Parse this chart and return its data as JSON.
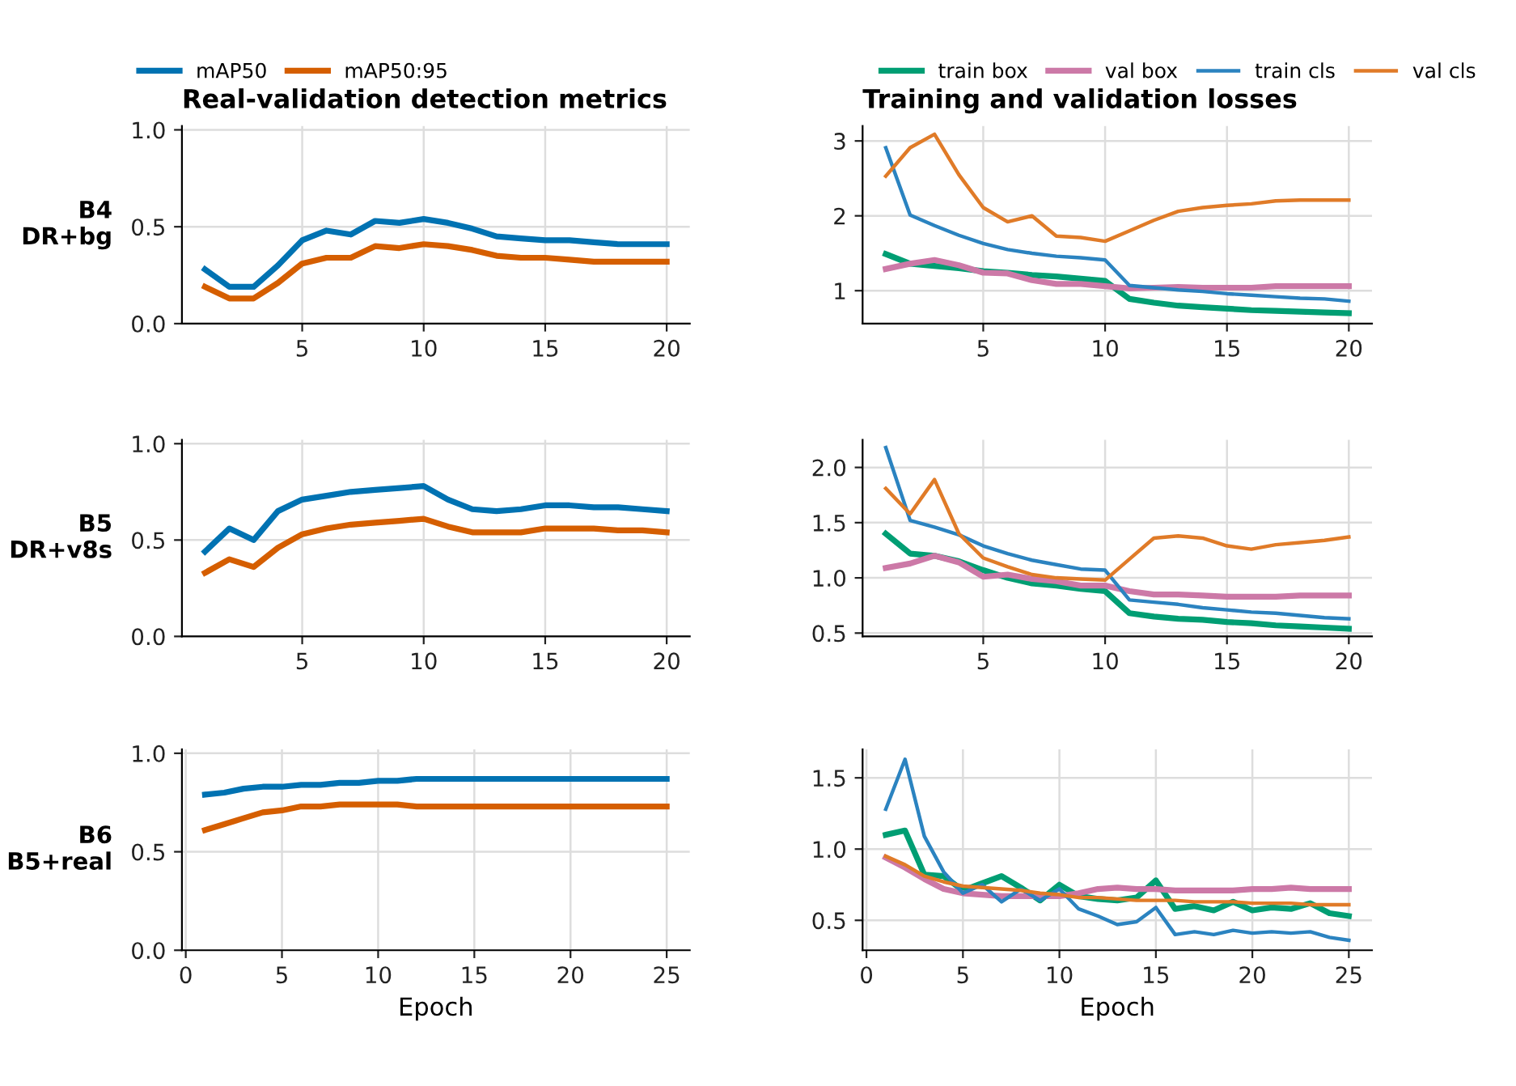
{
  "chart_data": [
    {
      "type": "line",
      "title": "Real-validation detection metrics",
      "ylabel": "B4\nDR+bg",
      "legend": "top left",
      "grid": true,
      "x": [
        1,
        2,
        3,
        4,
        5,
        6,
        7,
        8,
        9,
        10,
        11,
        12,
        13,
        14,
        15,
        16,
        17,
        18,
        19,
        20
      ],
      "xlim": [
        0.05,
        20.95
      ],
      "xticks": [
        5,
        10,
        15,
        20
      ],
      "ylim": [
        0,
        1.02
      ],
      "yticks": [
        {
          "value": 0,
          "label": "0.0"
        },
        0.5,
        {
          "value": 1,
          "label": "1.0"
        }
      ],
      "series": [
        {
          "name": "mAP50",
          "color": "#0072b2",
          "values": [
            0.28,
            0.19,
            0.19,
            0.3,
            0.43,
            0.48,
            0.46,
            0.53,
            0.52,
            0.54,
            0.52,
            0.49,
            0.45,
            0.44,
            0.43,
            0.43,
            0.42,
            0.41,
            0.41,
            0.41
          ]
        },
        {
          "name": "mAP50:95",
          "color": "#d55e00",
          "values": [
            0.19,
            0.13,
            0.13,
            0.21,
            0.31,
            0.34,
            0.34,
            0.4,
            0.39,
            0.41,
            0.4,
            0.38,
            0.35,
            0.34,
            0.34,
            0.33,
            0.32,
            0.32,
            0.32,
            0.32
          ]
        }
      ]
    },
    {
      "type": "line",
      "title": "Training and validation losses",
      "legend": "top right",
      "grid": true,
      "x": [
        1,
        2,
        3,
        4,
        5,
        6,
        7,
        8,
        9,
        10,
        11,
        12,
        13,
        14,
        15,
        16,
        17,
        18,
        19,
        20
      ],
      "xlim": [
        0.05,
        20.95
      ],
      "xticks": [
        5,
        10,
        15,
        20
      ],
      "ylim": [
        0.56,
        3.2
      ],
      "yticks": [
        1,
        2,
        3
      ],
      "series": [
        {
          "name": "train box",
          "color": "#009e73",
          "values": [
            1.49,
            1.36,
            1.33,
            1.3,
            1.26,
            1.24,
            1.21,
            1.19,
            1.16,
            1.13,
            0.89,
            0.84,
            0.8,
            0.78,
            0.76,
            0.74,
            0.73,
            0.72,
            0.71,
            0.7
          ]
        },
        {
          "name": "val box",
          "color": "#cc79a7",
          "values": [
            1.29,
            1.36,
            1.41,
            1.34,
            1.24,
            1.23,
            1.14,
            1.09,
            1.09,
            1.06,
            1.03,
            1.04,
            1.05,
            1.04,
            1.04,
            1.04,
            1.06,
            1.06,
            1.06,
            1.06
          ]
        },
        {
          "name": "train cls",
          "color": "#2b83c0",
          "values": [
            2.91,
            2.01,
            1.87,
            1.74,
            1.63,
            1.55,
            1.5,
            1.46,
            1.44,
            1.41,
            1.07,
            1.04,
            1.01,
            0.99,
            0.96,
            0.94,
            0.92,
            0.9,
            0.89,
            0.86
          ]
        },
        {
          "name": "val cls",
          "color": "#e07b28",
          "values": [
            2.53,
            2.91,
            3.09,
            2.55,
            2.11,
            1.92,
            2.0,
            1.73,
            1.71,
            1.66,
            1.8,
            1.94,
            2.06,
            2.11,
            2.14,
            2.16,
            2.2,
            2.21,
            2.21,
            2.21
          ]
        }
      ]
    },
    {
      "type": "line",
      "ylabel": "B5\nDR+v8s",
      "grid": true,
      "x": [
        1,
        2,
        3,
        4,
        5,
        6,
        7,
        8,
        9,
        10,
        11,
        12,
        13,
        14,
        15,
        16,
        17,
        18,
        19,
        20
      ],
      "xlim": [
        0.05,
        20.95
      ],
      "xticks": [
        5,
        10,
        15,
        20
      ],
      "ylim": [
        0,
        1.02
      ],
      "yticks": [
        {
          "value": 0,
          "label": "0.0"
        },
        0.5,
        {
          "value": 1,
          "label": "1.0"
        }
      ],
      "series": [
        {
          "color": "#0072b2",
          "values": [
            0.44,
            0.56,
            0.5,
            0.65,
            0.71,
            0.73,
            0.75,
            0.76,
            0.77,
            0.78,
            0.71,
            0.66,
            0.65,
            0.66,
            0.68,
            0.68,
            0.67,
            0.67,
            0.66,
            0.65
          ]
        },
        {
          "color": "#d55e00",
          "values": [
            0.33,
            0.4,
            0.36,
            0.46,
            0.53,
            0.56,
            0.58,
            0.59,
            0.6,
            0.61,
            0.57,
            0.54,
            0.54,
            0.54,
            0.56,
            0.56,
            0.56,
            0.55,
            0.55,
            0.54
          ]
        }
      ]
    },
    {
      "type": "line",
      "grid": true,
      "x": [
        1,
        2,
        3,
        4,
        5,
        6,
        7,
        8,
        9,
        10,
        11,
        12,
        13,
        14,
        15,
        16,
        17,
        18,
        19,
        20
      ],
      "xlim": [
        0.05,
        20.95
      ],
      "xticks": [
        5,
        10,
        15,
        20
      ],
      "ylim": [
        0.47,
        2.25
      ],
      "yticks": [
        0.5,
        {
          "value": 1,
          "label": "1.0"
        },
        1.5,
        {
          "value": 2,
          "label": "2.0"
        }
      ],
      "series": [
        {
          "color": "#009e73",
          "values": [
            1.4,
            1.22,
            1.2,
            1.15,
            1.07,
            1.0,
            0.95,
            0.93,
            0.9,
            0.88,
            0.68,
            0.65,
            0.63,
            0.62,
            0.6,
            0.59,
            0.57,
            0.56,
            0.55,
            0.54
          ]
        },
        {
          "color": "#cc79a7",
          "values": [
            1.09,
            1.13,
            1.2,
            1.14,
            1.01,
            1.03,
            0.99,
            0.97,
            0.93,
            0.93,
            0.88,
            0.85,
            0.85,
            0.84,
            0.83,
            0.83,
            0.83,
            0.84,
            0.84,
            0.84
          ]
        },
        {
          "color": "#2b83c0",
          "values": [
            2.18,
            1.52,
            1.46,
            1.39,
            1.29,
            1.22,
            1.16,
            1.12,
            1.08,
            1.07,
            0.8,
            0.78,
            0.76,
            0.73,
            0.71,
            0.69,
            0.68,
            0.66,
            0.64,
            0.63
          ]
        },
        {
          "color": "#e07b28",
          "values": [
            1.81,
            1.58,
            1.89,
            1.4,
            1.18,
            1.1,
            1.03,
            1.0,
            0.99,
            0.98,
            1.17,
            1.36,
            1.38,
            1.36,
            1.29,
            1.26,
            1.3,
            1.32,
            1.34,
            1.37
          ]
        }
      ]
    },
    {
      "type": "line",
      "ylabel": "B6\nB5+real",
      "xlabel": "Epoch",
      "grid": true,
      "x": [
        1,
        2,
        3,
        4,
        5,
        6,
        7,
        8,
        9,
        10,
        11,
        12,
        13,
        14,
        15,
        16,
        17,
        18,
        19,
        20,
        21,
        22,
        23,
        24,
        25
      ],
      "xlim": [
        -0.2,
        26.2
      ],
      "xticks": [
        0,
        5,
        10,
        15,
        20,
        25
      ],
      "ylim": [
        0,
        1.02
      ],
      "yticks": [
        {
          "value": 0,
          "label": "0.0"
        },
        0.5,
        {
          "value": 1,
          "label": "1.0"
        }
      ],
      "series": [
        {
          "color": "#0072b2",
          "values": [
            0.79,
            0.8,
            0.82,
            0.83,
            0.83,
            0.84,
            0.84,
            0.85,
            0.85,
            0.86,
            0.86,
            0.87,
            0.87,
            0.87,
            0.87,
            0.87,
            0.87,
            0.87,
            0.87,
            0.87,
            0.87,
            0.87,
            0.87,
            0.87,
            0.87
          ]
        },
        {
          "color": "#d55e00",
          "values": [
            0.61,
            0.64,
            0.67,
            0.7,
            0.71,
            0.73,
            0.73,
            0.74,
            0.74,
            0.74,
            0.74,
            0.73,
            0.73,
            0.73,
            0.73,
            0.73,
            0.73,
            0.73,
            0.73,
            0.73,
            0.73,
            0.73,
            0.73,
            0.73,
            0.73
          ]
        }
      ]
    },
    {
      "type": "line",
      "xlabel": "Epoch",
      "grid": true,
      "x": [
        1,
        2,
        3,
        4,
        5,
        6,
        7,
        8,
        9,
        10,
        11,
        12,
        13,
        14,
        15,
        16,
        17,
        18,
        19,
        20,
        21,
        22,
        23,
        24,
        25
      ],
      "xlim": [
        -0.2,
        26.2
      ],
      "xticks": [
        0,
        5,
        10,
        15,
        20,
        25
      ],
      "ylim": [
        0.29,
        1.7
      ],
      "yticks": [
        0.5,
        {
          "value": 1,
          "label": "1.0"
        },
        1.5
      ],
      "series": [
        {
          "color": "#009e73",
          "values": [
            1.1,
            1.13,
            0.82,
            0.81,
            0.71,
            0.76,
            0.81,
            0.73,
            0.64,
            0.75,
            0.67,
            0.65,
            0.64,
            0.66,
            0.78,
            0.58,
            0.6,
            0.57,
            0.63,
            0.57,
            0.59,
            0.58,
            0.62,
            0.55,
            0.53
          ]
        },
        {
          "color": "#cc79a7",
          "values": [
            0.94,
            0.87,
            0.79,
            0.72,
            0.69,
            0.68,
            0.67,
            0.67,
            0.67,
            0.67,
            0.69,
            0.72,
            0.73,
            0.72,
            0.72,
            0.71,
            0.71,
            0.71,
            0.71,
            0.72,
            0.72,
            0.73,
            0.72,
            0.72,
            0.72
          ]
        },
        {
          "color": "#2b83c0",
          "values": [
            1.28,
            1.63,
            1.09,
            0.84,
            0.69,
            0.75,
            0.63,
            0.72,
            0.64,
            0.72,
            0.58,
            0.53,
            0.47,
            0.49,
            0.59,
            0.4,
            0.42,
            0.4,
            0.43,
            0.41,
            0.42,
            0.41,
            0.42,
            0.38,
            0.36
          ]
        },
        {
          "color": "#e07b28",
          "values": [
            0.95,
            0.89,
            0.81,
            0.77,
            0.74,
            0.73,
            0.72,
            0.71,
            0.69,
            0.68,
            0.66,
            0.66,
            0.65,
            0.64,
            0.64,
            0.64,
            0.63,
            0.63,
            0.63,
            0.62,
            0.62,
            0.62,
            0.61,
            0.61,
            0.61
          ]
        }
      ]
    }
  ]
}
